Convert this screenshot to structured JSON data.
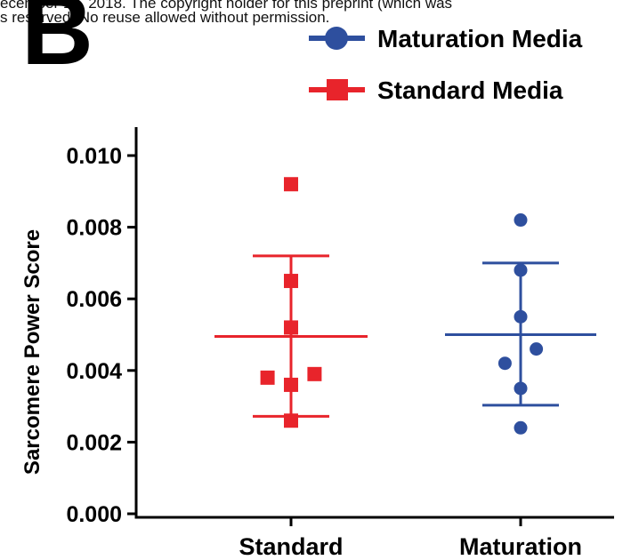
{
  "header": {
    "line1": "ecember 10, 2018. The copyright holder for this preprint (which was",
    "line2": "s reserved. No reuse allowed without permission."
  },
  "panel_label": "B",
  "colors": {
    "standard": "#e8242b",
    "maturation": "#2e4f9e",
    "axis": "#000000"
  },
  "chart_data": {
    "type": "scatter",
    "title": "",
    "xlabel": "",
    "ylabel": "Sarcomere Power Score",
    "ylim": [
      0,
      0.01
    ],
    "yticks": [
      "0.000",
      "0.002",
      "0.004",
      "0.006",
      "0.008",
      "0.010"
    ],
    "categories": [
      "Standard",
      "Maturation"
    ],
    "legend": {
      "placement": "top-right"
    },
    "series": [
      {
        "name": "Maturation Media",
        "category": "Maturation",
        "marker": "circle",
        "color": "#2e4f9e",
        "points": [
          {
            "dx": 0,
            "y": 0.0082
          },
          {
            "dx": 0,
            "y": 0.0068
          },
          {
            "dx": 0,
            "y": 0.0055
          },
          {
            "dx": -0.22,
            "y": 0.0042
          },
          {
            "dx": 0.22,
            "y": 0.0046
          },
          {
            "dx": 0,
            "y": 0.0035
          },
          {
            "dx": 0,
            "y": 0.0024
          }
        ],
        "mean": 0.005,
        "error_high": 0.007,
        "error_low": 0.00303
      },
      {
        "name": "Standard Media",
        "category": "Standard",
        "marker": "square",
        "color": "#e8242b",
        "points": [
          {
            "dx": 0,
            "y": 0.0092
          },
          {
            "dx": 0,
            "y": 0.0065
          },
          {
            "dx": 0,
            "y": 0.0052
          },
          {
            "dx": -0.33,
            "y": 0.0038
          },
          {
            "dx": 0,
            "y": 0.0036
          },
          {
            "dx": 0.33,
            "y": 0.0039
          },
          {
            "dx": 0,
            "y": 0.0026
          }
        ],
        "mean": 0.00495,
        "error_high": 0.0072,
        "error_low": 0.00272
      }
    ]
  }
}
